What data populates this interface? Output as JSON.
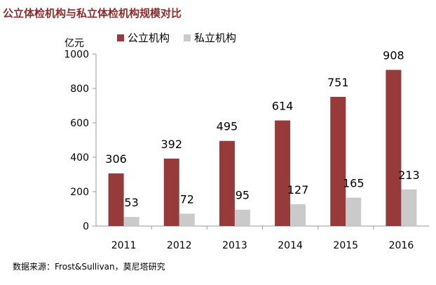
{
  "chart_data": {
    "type": "bar",
    "title": "公立体检机构与私立体检机构规模对比",
    "ylabel": "亿元",
    "ylim": [
      0,
      1000
    ],
    "yticks": [
      0,
      200,
      400,
      600,
      800,
      1000
    ],
    "categories": [
      "2011",
      "2012",
      "2013",
      "2014",
      "2015",
      "2016"
    ],
    "series": [
      {
        "name": "公立机构",
        "color": "#963a3a",
        "values": [
          306,
          392,
          495,
          614,
          751,
          908
        ]
      },
      {
        "name": "私立机构",
        "color": "#cacaca",
        "values": [
          53,
          72,
          95,
          127,
          165,
          213
        ]
      }
    ],
    "legend_position": "top-center",
    "grid": false
  },
  "source": "数据来源：Frost&Sullivan，莫尼塔研究"
}
